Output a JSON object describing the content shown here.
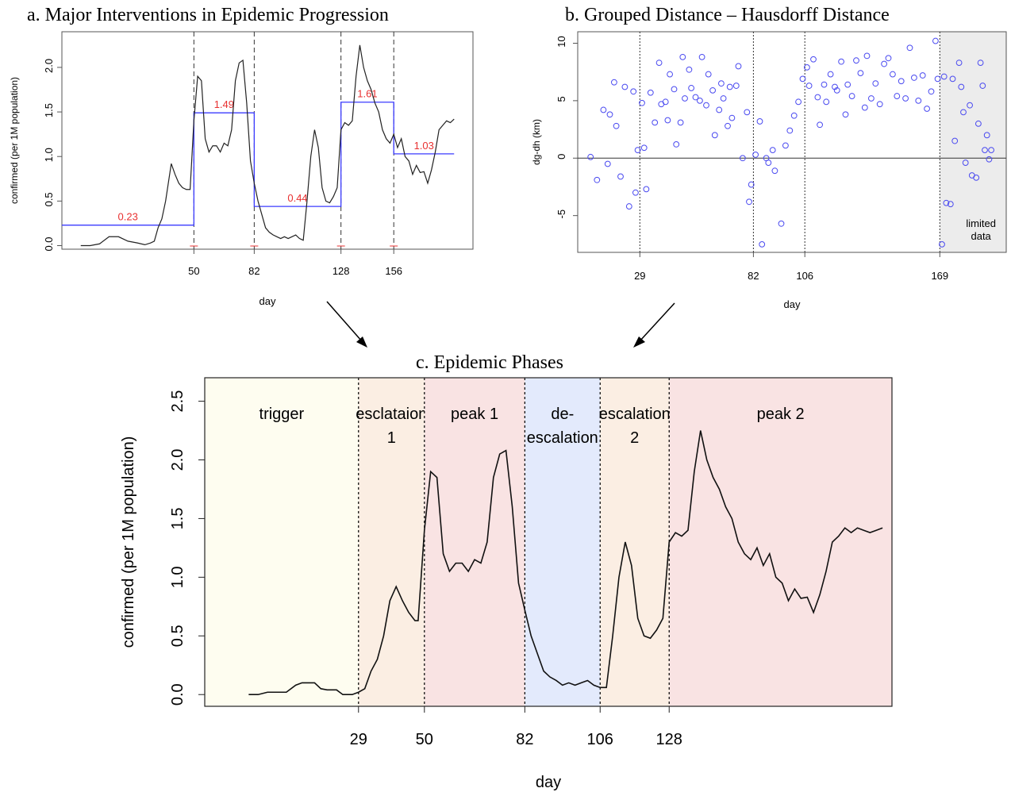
{
  "figure": {
    "panel_a_title": "a. Major Interventions in Epidemic Progression",
    "panel_b_title": "b. Grouped Distance – Hausdorff Distance",
    "panel_c_title": "c. Epidemic Phases"
  },
  "chart_data": [
    {
      "id": "panel-a",
      "type": "line",
      "title": "a. Major Interventions in Epidemic Progression",
      "xlabel": "day",
      "ylabel": "confirmed (per 1M population)",
      "xlim": [
        -20,
        198
      ],
      "ylim": [
        -0.04,
        2.4
      ],
      "xticks": [
        50,
        82,
        128,
        156
      ],
      "yticks": [
        "0.0",
        "0.5",
        "1.0",
        "1.5",
        "2.0"
      ],
      "grid": false,
      "series_color": "#222222",
      "step_color": "#3b3bff",
      "label_color": "#e83030",
      "interventions": [
        50,
        82,
        128,
        156
      ],
      "step_levels": [
        {
          "from": -20,
          "to": 50,
          "value": 0.23,
          "label": "0.23"
        },
        {
          "from": 50,
          "to": 82,
          "value": 1.49,
          "label": "1.49"
        },
        {
          "from": 82,
          "to": 128,
          "value": 0.44,
          "label": "0.44"
        },
        {
          "from": 128,
          "to": 156,
          "value": 1.61,
          "label": "1.61"
        },
        {
          "from": 156,
          "to": 188,
          "value": 1.03,
          "label": "1.03"
        }
      ],
      "series": [
        {
          "x": [
            -10,
            -5,
            0,
            5,
            10,
            15,
            20,
            24,
            27,
            29,
            31,
            33,
            35,
            38,
            40,
            42,
            44,
            46,
            48,
            50,
            52,
            54,
            56,
            58,
            60,
            62,
            64,
            66,
            68,
            70,
            72,
            74,
            76,
            78,
            80,
            82,
            84,
            86,
            88,
            90,
            92,
            94,
            96,
            98,
            100,
            102,
            104,
            106,
            108,
            110,
            112,
            114,
            116,
            118,
            120,
            122,
            124,
            126,
            128,
            130,
            132,
            134,
            136,
            138,
            140,
            142,
            144,
            146,
            148,
            150,
            152,
            154,
            156,
            158,
            160,
            162,
            164,
            166,
            168,
            170,
            172,
            174,
            176,
            178,
            180,
            182,
            184,
            186,
            188
          ],
          "values": [
            0,
            0,
            0.02,
            0.1,
            0.1,
            0.05,
            0.03,
            0.01,
            0.03,
            0.05,
            0.2,
            0.3,
            0.5,
            0.92,
            0.8,
            0.7,
            0.65,
            0.63,
            0.63,
            1.4,
            1.9,
            1.85,
            1.2,
            1.05,
            1.12,
            1.12,
            1.05,
            1.15,
            1.12,
            1.3,
            1.85,
            2.05,
            2.08,
            1.6,
            0.95,
            0.7,
            0.5,
            0.35,
            0.2,
            0.15,
            0.12,
            0.1,
            0.08,
            0.1,
            0.08,
            0.1,
            0.12,
            0.08,
            0.06,
            0.5,
            1.0,
            1.3,
            1.1,
            0.65,
            0.5,
            0.48,
            0.55,
            0.65,
            1.3,
            1.38,
            1.35,
            1.4,
            1.9,
            2.25,
            2.0,
            1.85,
            1.75,
            1.6,
            1.5,
            1.3,
            1.2,
            1.15,
            1.25,
            1.1,
            1.2,
            1.0,
            0.95,
            0.8,
            0.9,
            0.82,
            0.83,
            0.7,
            0.85,
            1.05,
            1.3,
            1.35,
            1.4,
            1.38,
            1.42
          ]
        }
      ]
    },
    {
      "id": "panel-b",
      "type": "scatter",
      "title": "b. Grouped Distance – Hausdorff Distance",
      "xlabel": "day",
      "ylabel": "dg-dh (km)",
      "xlim": [
        0,
        200
      ],
      "ylim": [
        -8.2,
        11
      ],
      "xticks": [
        29,
        82,
        106,
        169
      ],
      "yticks": [
        "-5",
        "0",
        "5",
        "10"
      ],
      "grid": false,
      "point_color": "#4a4af0",
      "shaded_region": {
        "from": 169,
        "to": 200,
        "label_line1": "limited",
        "label_line2": "data"
      },
      "markers": [
        29,
        82,
        106,
        169
      ],
      "x": [
        6,
        9,
        12,
        14,
        15,
        17,
        18,
        20,
        22,
        24,
        26,
        27,
        28,
        30,
        31,
        32,
        34,
        36,
        38,
        39,
        41,
        42,
        43,
        45,
        46,
        48,
        49,
        50,
        52,
        53,
        55,
        57,
        58,
        60,
        61,
        63,
        64,
        66,
        67,
        68,
        70,
        71,
        72,
        74,
        75,
        77,
        79,
        80,
        81,
        83,
        85,
        86,
        88,
        89,
        91,
        92,
        95,
        97,
        99,
        101,
        103,
        105,
        107,
        108,
        110,
        112,
        113,
        115,
        116,
        118,
        120,
        121,
        123,
        125,
        126,
        128,
        130,
        132,
        134,
        135,
        137,
        139,
        141,
        143,
        145,
        147,
        149,
        151,
        153,
        155,
        157,
        159,
        161,
        163,
        165,
        167,
        168,
        170,
        171,
        172,
        174,
        175,
        176,
        178,
        179,
        180,
        181,
        183,
        184,
        186,
        187,
        188,
        189,
        190,
        191,
        192,
        193
      ],
      "y": [
        0.1,
        -1.9,
        4.2,
        -0.5,
        3.8,
        6.6,
        2.8,
        -1.6,
        6.2,
        -4.2,
        5.8,
        -3.0,
        0.7,
        4.8,
        0.9,
        -2.7,
        5.7,
        3.1,
        8.3,
        4.7,
        4.9,
        3.3,
        7.3,
        6.0,
        1.2,
        3.1,
        8.8,
        5.2,
        7.7,
        6.1,
        5.3,
        5.0,
        8.8,
        4.6,
        7.3,
        5.9,
        2.0,
        4.2,
        6.5,
        5.2,
        2.8,
        6.2,
        3.5,
        6.3,
        8.0,
        0.0,
        4.0,
        -3.8,
        -2.3,
        0.3,
        3.2,
        -7.5,
        0.0,
        -0.4,
        0.7,
        -1.1,
        -5.7,
        1.1,
        2.4,
        3.7,
        4.9,
        6.9,
        7.9,
        6.3,
        8.6,
        5.3,
        2.9,
        6.4,
        4.9,
        7.3,
        6.2,
        5.9,
        8.4,
        3.8,
        6.4,
        5.4,
        8.5,
        7.4,
        4.4,
        8.9,
        5.2,
        6.5,
        4.7,
        8.2,
        8.7,
        7.3,
        5.4,
        6.7,
        5.2,
        9.6,
        7.0,
        5.0,
        7.2,
        4.3,
        5.8,
        10.2,
        6.9,
        -7.5,
        7.1,
        -3.9,
        -4.0,
        6.9,
        1.5,
        8.3,
        6.2,
        4.0,
        -0.4,
        4.6,
        -1.5,
        -1.7,
        3.0,
        8.3,
        6.3,
        0.7,
        2.0,
        -0.1,
        0.7
      ]
    },
    {
      "id": "panel-c",
      "type": "line",
      "title": "c. Epidemic Phases",
      "xlabel": "day",
      "ylabel": "confirmed (per 1M population)",
      "xlim": [
        -20,
        199
      ],
      "ylim": [
        -0.1,
        2.7
      ],
      "xticks": [
        29,
        50,
        82,
        106,
        128
      ],
      "yticks": [
        "0.0",
        "0.5",
        "1.0",
        "1.5",
        "2.0",
        "2.5"
      ],
      "grid": false,
      "phases": [
        {
          "from": -20,
          "to": 29,
          "label_line1": "trigger",
          "label_line2": "",
          "color": "#fefdf0"
        },
        {
          "from": 29,
          "to": 50,
          "label_line1": "esclataion",
          "label_line2": "1",
          "color": "#fbeee3"
        },
        {
          "from": 50,
          "to": 82,
          "label_line1": "peak 1",
          "label_line2": "",
          "color": "#f9e3e3"
        },
        {
          "from": 82,
          "to": 106,
          "label_line1": "de-",
          "label_line2": "escalation",
          "color": "#e3eafc"
        },
        {
          "from": 106,
          "to": 128,
          "label_line1": "escalation",
          "label_line2": "2",
          "color": "#fbeee3"
        },
        {
          "from": 128,
          "to": 199,
          "label_line1": "peak 2",
          "label_line2": "",
          "color": "#f9e3e3"
        }
      ],
      "series": [
        {
          "x": [
            -6,
            -3,
            0,
            3,
            6,
            9,
            11,
            13,
            15,
            17,
            19,
            22,
            24,
            27,
            29,
            31,
            33,
            35,
            37,
            39,
            41,
            43,
            45,
            47,
            48,
            50,
            52,
            54,
            56,
            58,
            60,
            62,
            64,
            66,
            68,
            70,
            72,
            74,
            76,
            78,
            80,
            82,
            84,
            86,
            88,
            90,
            92,
            94,
            96,
            98,
            100,
            102,
            104,
            106,
            108,
            110,
            112,
            114,
            116,
            118,
            120,
            122,
            124,
            126,
            128,
            130,
            132,
            134,
            136,
            138,
            140,
            142,
            144,
            146,
            148,
            150,
            152,
            154,
            156,
            158,
            160,
            162,
            164,
            166,
            168,
            170,
            172,
            174,
            176,
            178,
            180,
            182,
            184,
            186,
            188,
            190,
            192,
            194,
            196
          ],
          "values": [
            0,
            0,
            0.02,
            0.02,
            0.02,
            0.08,
            0.1,
            0.1,
            0.1,
            0.05,
            0.04,
            0.04,
            0,
            0,
            0.02,
            0.05,
            0.2,
            0.3,
            0.5,
            0.8,
            0.92,
            0.8,
            0.7,
            0.63,
            0.63,
            1.4,
            1.9,
            1.85,
            1.2,
            1.05,
            1.12,
            1.12,
            1.05,
            1.15,
            1.12,
            1.3,
            1.85,
            2.05,
            2.08,
            1.6,
            0.95,
            0.72,
            0.5,
            0.35,
            0.2,
            0.15,
            0.12,
            0.08,
            0.1,
            0.08,
            0.1,
            0.12,
            0.08,
            0.06,
            0.06,
            0.5,
            1.0,
            1.3,
            1.1,
            0.65,
            0.5,
            0.48,
            0.55,
            0.65,
            1.3,
            1.38,
            1.35,
            1.4,
            1.9,
            2.25,
            2.0,
            1.85,
            1.75,
            1.6,
            1.5,
            1.3,
            1.2,
            1.15,
            1.25,
            1.1,
            1.2,
            1.0,
            0.95,
            0.8,
            0.9,
            0.82,
            0.83,
            0.7,
            0.85,
            1.05,
            1.3,
            1.35,
            1.42,
            1.38,
            1.42,
            1.4,
            1.38,
            1.4,
            1.42
          ]
        }
      ]
    }
  ]
}
